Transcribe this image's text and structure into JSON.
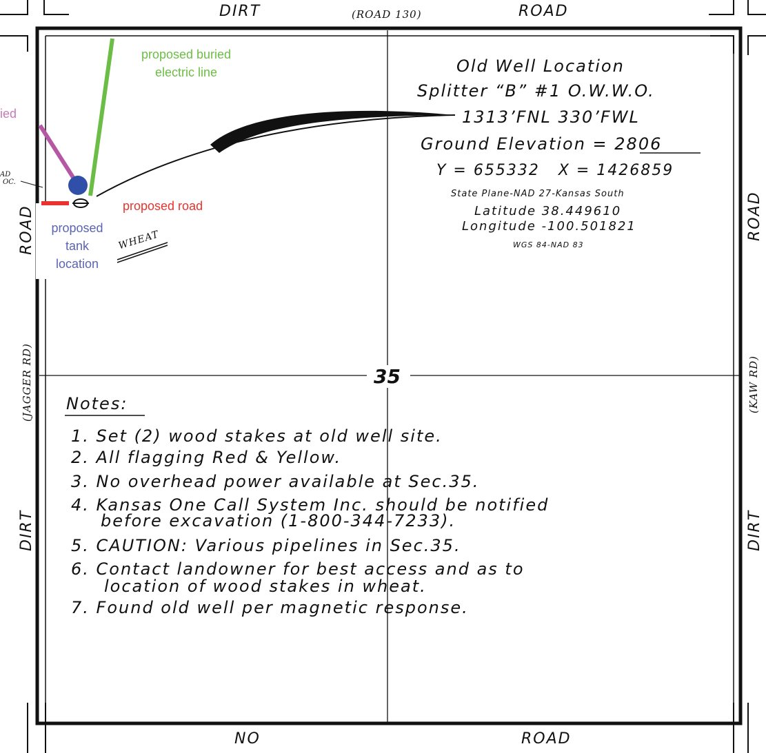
{
  "colors": {
    "electric_line": "#6cbd45",
    "pipeline": "#b657a4",
    "road_proposed": "#e8332f",
    "tank": "#2f4fa8",
    "tank_label": "#5b63b5",
    "buried_label": "#c77ab6"
  },
  "roads": {
    "top_left": "DIRT",
    "top_center": "(ROAD 130)",
    "top_right": "ROAD",
    "bottom_left": "NO",
    "bottom_right": "ROAD",
    "left_upper": "ROAD",
    "left_middle": "(JAGGER RD)",
    "left_lower": "DIRT",
    "right_upper": "ROAD",
    "right_middle": "(KAW RD)",
    "right_lower": "DIRT"
  },
  "section_number": "35",
  "well": {
    "title": "Old Well Location",
    "name": "Splitter “B” #1 O.W.W.O.",
    "footage": "1313’FNL 330’FWL",
    "elevation_label": "Ground Elevation = ",
    "elevation_value": "2806",
    "coords": "Y = 655332   X = 1426859",
    "datum": "State Plane-NAD 27-Kansas South",
    "latitude": "Latitude 38.449610",
    "longitude": "Longitude -100.501821",
    "wgs": "WGS 84-NAD 83"
  },
  "annotations": {
    "electric": "proposed buried electric line",
    "buried_partial": "ied",
    "road": "proposed road",
    "tank": "proposed tank location",
    "crop": "WHEAT",
    "road_loc_1": "AD",
    "road_loc_2": "OC."
  },
  "notes": {
    "heading": "Notes:",
    "items": [
      "1. Set (2) wood stakes at old well site.",
      "2. All flagging Red & Yellow.",
      "3. No overhead power available at Sec.35.",
      "4. Kansas One Call System Inc. should be notified",
      "before excavation (1-800-344-7233).",
      "5. CAUTION: Various pipelines in Sec.35.",
      "6. Contact landowner for best access and as to",
      "location of wood stakes in wheat.",
      "7. Found old well per magnetic response."
    ]
  }
}
